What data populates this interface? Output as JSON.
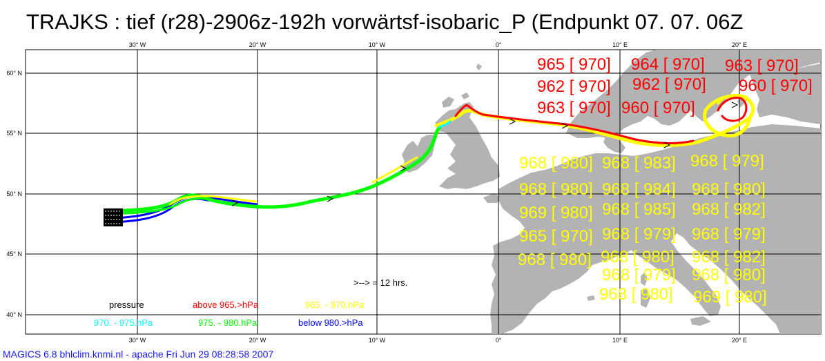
{
  "title": "TRAJKS :  tief (r28)-2906z-192h vorwärtsf-isobaric_P (Endpunkt 07. 07. 06Z",
  "footer": "MAGICS 6.8 bhlclim.knmi.nl - apache Fri Jun 29 08:28:58 2007",
  "axes": {
    "lon_labels": [
      "30° W",
      "20° W",
      "10° W",
      "0°",
      "10° E",
      "20° E"
    ],
    "lat_labels": [
      "60° N",
      "55° N",
      "50° N",
      "45° N",
      "40° N"
    ]
  },
  "time_scale": ">--> = 12 hrs.",
  "legend": {
    "title": "pressure",
    "above": "above   965.>hPa",
    "r965_970": "965. -     970.hPa",
    "r970_975": "970. -     975.hPa",
    "r975_980": "975. -     980.hPa",
    "below": "below   980.>hPa"
  },
  "colors": {
    "land": "#b3b3b3",
    "above": "#ff0000",
    "r965_970": "#ffff00",
    "r970_975": "#00ffff",
    "r975_980": "#00ff00",
    "below": "#0000ff"
  },
  "pressure_labels": {
    "red": [
      "965 [ 970]",
      "964 [ 970]",
      "963 [ 970]",
      "962 [ 970]",
      "962 [ 970]",
      "960 [ 970]",
      "963 [ 970]",
      "960 [ 970]"
    ],
    "yellow": [
      "968 [ 980]",
      "968 [ 983]",
      "968 [ 979]",
      "968 [ 980]",
      "968 [ 984]",
      "968 [ 980]",
      "969 [ 980]",
      "968 [ 985]",
      "968 [ 982]",
      "965 [ 970]",
      "968 [ 979]",
      "968 [ 979]",
      "968 [ 980]",
      "968 [ 980]",
      "968 [ 982]",
      "968 [ 979]",
      "968 [ 980]",
      "968 [ 980]",
      "969 [ 980]"
    ]
  }
}
